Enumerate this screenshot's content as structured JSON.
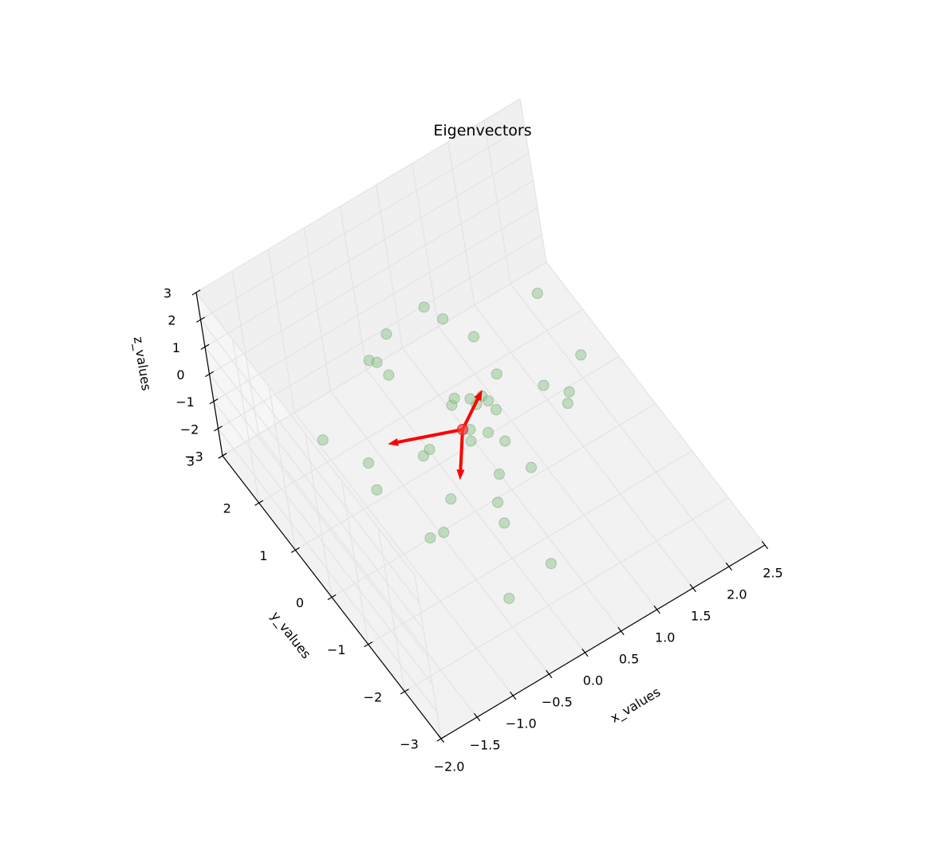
{
  "chart_data": {
    "type": "scatter3d",
    "title": "Eigenvectors",
    "xlabel": "x_values",
    "ylabel": "y_values",
    "zlabel": "z_values",
    "xlim": [
      -2.0,
      2.5
    ],
    "ylim": [
      -3,
      3
    ],
    "zlim": [
      -3,
      3
    ],
    "xticks": [
      "−2.0",
      "−1.5",
      "−1.0",
      "−0.5",
      "0.0",
      "0.5",
      "1.0",
      "1.5",
      "2.0",
      "2.5"
    ],
    "yticks": [
      "−3",
      "−2",
      "−1",
      "0",
      "1",
      "2",
      "3"
    ],
    "zticks": [
      "−3",
      "−2",
      "−1",
      "0",
      "1",
      "2",
      "3"
    ],
    "grid": true,
    "point_color": "#8fc48f",
    "mean_color": "#ff0000",
    "arrow_color": "#ff0000",
    "mean": [
      0.0,
      0.0,
      0.0
    ],
    "eigenvectors": [
      [
        -0.85,
        0.35,
        0.2
      ],
      [
        0.55,
        0.6,
        -0.45
      ],
      [
        -0.3,
        -0.45,
        -0.6
      ]
    ],
    "points": [
      [
        -0.35,
        1.9,
        -0.2
      ],
      [
        -0.15,
        -0.3,
        1.9
      ],
      [
        0.1,
        -1.0,
        2.3
      ],
      [
        0.4,
        -0.4,
        2.1
      ],
      [
        1.3,
        0.2,
        2.6
      ],
      [
        0.2,
        1.2,
        2.1
      ],
      [
        0.45,
        1.3,
        1.1
      ],
      [
        0.2,
        -0.5,
        1.6
      ],
      [
        -0.15,
        1.7,
        0.8
      ],
      [
        0.55,
        0.6,
        1.5
      ],
      [
        1.45,
        -0.55,
        1.4
      ],
      [
        1.1,
        -0.9,
        1.2
      ],
      [
        -0.05,
        0.1,
        0.8
      ],
      [
        -0.4,
        1.5,
        0.5
      ],
      [
        0.25,
        0.25,
        0.3
      ],
      [
        -0.35,
        1.3,
        0.3
      ],
      [
        0.35,
        0.1,
        0.5
      ],
      [
        0.3,
        0.2,
        0.1
      ],
      [
        -0.1,
        -0.5,
        0.6
      ],
      [
        -0.35,
        0.3,
        -0.7
      ],
      [
        0.1,
        -0.75,
        -0.5
      ],
      [
        0.3,
        -0.05,
        -0.5
      ],
      [
        -1.1,
        0.3,
        -1.0
      ],
      [
        0.35,
        -0.45,
        -0.2
      ],
      [
        0.15,
        0.15,
        -0.5
      ],
      [
        -0.95,
        0.85,
        -1.2
      ],
      [
        -0.55,
        0.0,
        -0.1
      ],
      [
        0.5,
        -0.8,
        -0.8
      ],
      [
        -1.5,
        0.8,
        0.6
      ],
      [
        -0.85,
        -0.6,
        -1.6
      ],
      [
        -0.65,
        -0.55,
        -1.8
      ],
      [
        -0.4,
        -0.3,
        -1.4
      ],
      [
        1.3,
        0.5,
        -1.3
      ],
      [
        1.35,
        -0.1,
        -1.0
      ],
      [
        -0.1,
        -1.2,
        -1.2
      ],
      [
        -0.45,
        -1.9,
        -2.2
      ],
      [
        0.3,
        -1.5,
        -2.8
      ],
      [
        -0.05,
        -0.95,
        -0.95
      ]
    ]
  }
}
